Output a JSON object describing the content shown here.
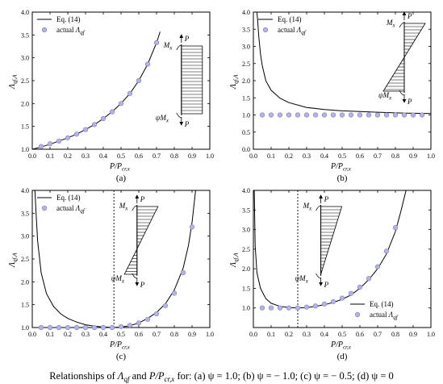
{
  "caption": {
    "prefix": "Relationships of ",
    "lambda": "Λ",
    "lambda_sub": "qf",
    "mid": " and ",
    "p_label": "P/P",
    "p_sub": "cr,x",
    "suffix": " for: (a) ψ = 1.0; (b) ψ = − 1.0; (c) ψ = − 0.5; (d) ψ = 0"
  },
  "common": {
    "xlabel": {
      "main": "P/P",
      "sub": "cr,x"
    },
    "ylabel": {
      "main": "Λ",
      "sub": "qf,A"
    },
    "legend_line": "Eq. (14)",
    "legend_marker": {
      "main": "actual ",
      "sym": "Λ",
      "sub": "qf"
    },
    "diagram_labels": {
      "moment": "M",
      "moment_sub": "x",
      "psi": "ψ",
      "axial": "P"
    },
    "colors": {
      "line": "#000000",
      "marker_fill": "#b3b3e8",
      "marker_stroke": "#7f7fbf",
      "hatch": "#000000"
    }
  },
  "chart_data": [
    {
      "panel_label": "(a)",
      "type": "line",
      "xlim": [
        0.0,
        1.0
      ],
      "ylim": [
        1.0,
        4.0
      ],
      "xticks": [
        "0.0",
        "0.1",
        "0.2",
        "0.3",
        "0.4",
        "0.5",
        "0.6",
        "0.7",
        "0.8",
        "0.9",
        "1.0"
      ],
      "yticks": [
        "1.0",
        "1.5",
        "2.0",
        "2.5",
        "3.0",
        "3.5",
        "4.0"
      ],
      "legend_position": "top-left",
      "vline": null,
      "diagram": "uniform",
      "series": [
        {
          "name": "Eq. (14)",
          "kind": "line",
          "x": [
            0.0,
            0.05,
            0.1,
            0.15,
            0.2,
            0.25,
            0.3,
            0.35,
            0.4,
            0.45,
            0.5,
            0.55,
            0.6,
            0.65,
            0.7,
            0.72
          ],
          "y": [
            1.0,
            1.05,
            1.11,
            1.18,
            1.25,
            1.33,
            1.43,
            1.54,
            1.67,
            1.82,
            2.0,
            2.22,
            2.5,
            2.86,
            3.33,
            3.57
          ]
        },
        {
          "name": "actual Λqf",
          "kind": "scatter",
          "x": [
            0.05,
            0.1,
            0.15,
            0.2,
            0.25,
            0.3,
            0.35,
            0.4,
            0.45,
            0.5,
            0.55,
            0.6,
            0.65,
            0.7
          ],
          "y": [
            1.06,
            1.12,
            1.18,
            1.25,
            1.33,
            1.43,
            1.54,
            1.67,
            1.82,
            2.0,
            2.22,
            2.5,
            2.86,
            3.33
          ]
        }
      ]
    },
    {
      "panel_label": "(b)",
      "type": "line",
      "xlim": [
        0.0,
        1.0
      ],
      "ylim": [
        0.0,
        4.0
      ],
      "xticks": [
        "0.0",
        "0.1",
        "0.2",
        "0.3",
        "0.4",
        "0.5",
        "0.6",
        "0.7",
        "0.8",
        "0.9",
        "1.0"
      ],
      "yticks": [
        "0.0",
        "0.5",
        "1.0",
        "1.5",
        "2.0",
        "2.5",
        "3.0",
        "3.5",
        "4.0"
      ],
      "legend_position": "top-left",
      "vline": null,
      "diagram": "antisymmetric",
      "series": [
        {
          "name": "Eq. (14)",
          "kind": "line",
          "x": [
            0.02,
            0.025,
            0.03,
            0.04,
            0.05,
            0.07,
            0.1,
            0.15,
            0.2,
            0.3,
            0.4,
            0.5,
            0.6,
            0.7,
            0.8,
            0.9,
            1.0
          ],
          "y": [
            4.0,
            3.7,
            3.32,
            2.78,
            2.44,
            2.0,
            1.72,
            1.49,
            1.36,
            1.22,
            1.16,
            1.12,
            1.1,
            1.08,
            1.06,
            1.05,
            1.04
          ]
        },
        {
          "name": "actual Λqf",
          "kind": "scatter",
          "x": [
            0.05,
            0.1,
            0.15,
            0.2,
            0.25,
            0.3,
            0.35,
            0.4,
            0.45,
            0.5,
            0.55,
            0.6,
            0.65,
            0.7,
            0.75,
            0.8,
            0.85,
            0.9,
            0.95
          ],
          "y": [
            1,
            1,
            1,
            1,
            1,
            1,
            1,
            1,
            1,
            1,
            1,
            1,
            1,
            1,
            1,
            1,
            1,
            1,
            1
          ]
        }
      ]
    },
    {
      "panel_label": "(c)",
      "type": "line",
      "xlim": [
        0.0,
        1.0
      ],
      "ylim": [
        1.0,
        4.0
      ],
      "xticks": [
        "0.0",
        "0.1",
        "0.2",
        "0.3",
        "0.4",
        "0.5",
        "0.6",
        "0.7",
        "0.8",
        "0.9",
        "1.0"
      ],
      "yticks": [
        "1.0",
        "1.5",
        "2.0",
        "2.5",
        "3.0",
        "3.5",
        "4.0"
      ],
      "legend_position": "top-left",
      "vline": 0.46,
      "diagram": "triangular-reverse",
      "series": [
        {
          "name": "Eq. (14)",
          "kind": "line",
          "x": [
            0.015,
            0.02,
            0.03,
            0.05,
            0.08,
            0.12,
            0.16,
            0.2,
            0.25,
            0.3,
            0.35,
            0.4,
            0.46,
            0.5,
            0.55,
            0.6,
            0.65,
            0.7,
            0.75,
            0.8,
            0.85,
            0.88,
            0.9,
            0.92
          ],
          "y": [
            4.0,
            3.6,
            2.9,
            2.2,
            1.74,
            1.46,
            1.3,
            1.2,
            1.12,
            1.06,
            1.03,
            1.01,
            1.0,
            1.01,
            1.04,
            1.1,
            1.2,
            1.33,
            1.52,
            1.82,
            2.3,
            2.8,
            3.3,
            4.0
          ]
        },
        {
          "name": "actual Λqf",
          "kind": "scatter",
          "x": [
            0.05,
            0.1,
            0.15,
            0.2,
            0.25,
            0.3,
            0.35,
            0.4,
            0.45,
            0.5,
            0.55,
            0.6,
            0.65,
            0.7,
            0.75,
            0.8,
            0.85,
            0.9
          ],
          "y": [
            1.0,
            1.0,
            1.0,
            1.0,
            1.0,
            1.0,
            1.0,
            1.0,
            1.0,
            1.02,
            1.05,
            1.1,
            1.18,
            1.3,
            1.48,
            1.75,
            2.2,
            3.2
          ]
        }
      ]
    },
    {
      "panel_label": "(d)",
      "type": "line",
      "xlim": [
        0.0,
        1.0
      ],
      "ylim": [
        0.5,
        4.0
      ],
      "xticks": [
        "0.0",
        "0.1",
        "0.2",
        "0.3",
        "0.4",
        "0.5",
        "0.6",
        "0.7",
        "0.8",
        "0.9",
        "1.0"
      ],
      "yticks": [
        "1.0",
        "1.5",
        "2.0",
        "2.5",
        "3.0",
        "3.5",
        "4.0"
      ],
      "legend_position": "bottom-right",
      "vline": 0.25,
      "diagram": "triangular",
      "series": [
        {
          "name": "Eq. (14)",
          "kind": "line",
          "x": [
            0.005,
            0.01,
            0.02,
            0.04,
            0.07,
            0.1,
            0.15,
            0.2,
            0.25,
            0.3,
            0.35,
            0.4,
            0.45,
            0.5,
            0.55,
            0.6,
            0.65,
            0.7,
            0.75,
            0.8,
            0.83,
            0.86
          ],
          "y": [
            4.0,
            2.6,
            1.9,
            1.5,
            1.24,
            1.12,
            1.04,
            1.01,
            1.0,
            1.01,
            1.04,
            1.08,
            1.14,
            1.22,
            1.33,
            1.5,
            1.72,
            2.0,
            2.38,
            2.95,
            3.45,
            4.0
          ]
        },
        {
          "name": "actual Λqf",
          "kind": "scatter",
          "x": [
            0.05,
            0.1,
            0.15,
            0.2,
            0.25,
            0.3,
            0.35,
            0.4,
            0.45,
            0.5,
            0.55,
            0.6,
            0.65,
            0.7,
            0.75,
            0.8
          ],
          "y": [
            1.0,
            1.0,
            1.0,
            1.0,
            1.0,
            1.02,
            1.05,
            1.1,
            1.16,
            1.25,
            1.37,
            1.53,
            1.75,
            2.05,
            2.45,
            3.05
          ]
        }
      ]
    }
  ]
}
